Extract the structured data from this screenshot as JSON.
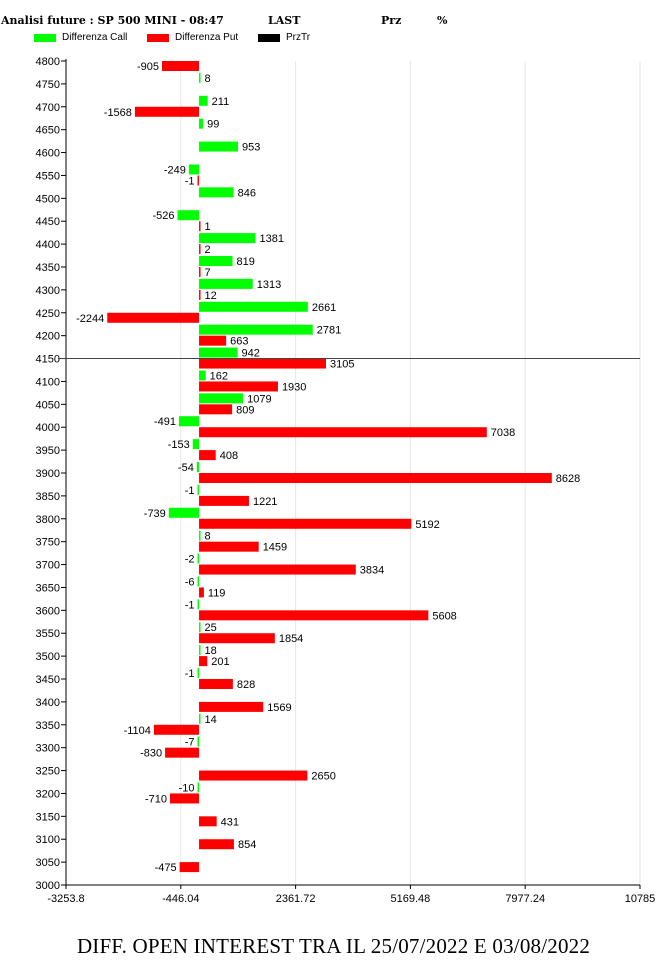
{
  "header": {
    "title": "Analisi future : SP 500 MINI - 08:47",
    "last": "LAST",
    "prz": "Prz",
    "pct": "%"
  },
  "legend": [
    {
      "label": "Differenza Call",
      "color": "#00ff00"
    },
    {
      "label": "Differenza Put",
      "color": "#ff0000"
    },
    {
      "label": "PrzTr",
      "color": "#000000"
    }
  ],
  "footer": "DIFF. OPEN INTEREST TRA IL 25/07/2022 E 03/08/2022",
  "chart_data": {
    "type": "bar",
    "orientation": "horizontal",
    "categories": [
      4800,
      4750,
      4700,
      4650,
      4600,
      4550,
      4500,
      4450,
      4400,
      4350,
      4300,
      4250,
      4200,
      4150,
      4100,
      4050,
      4000,
      3950,
      3900,
      3850,
      3800,
      3750,
      3700,
      3650,
      3600,
      3550,
      3500,
      3450,
      3400,
      3350,
      3300,
      3250,
      3200,
      3150,
      3100,
      3050
    ],
    "series": [
      {
        "name": "Differenza Call",
        "color": "#00ff00",
        "values": [
          null,
          8,
          211,
          99,
          953,
          -249,
          846,
          -526,
          1381,
          819,
          1313,
          2661,
          2781,
          942,
          162,
          1079,
          -491,
          -153,
          -54,
          -1,
          -739,
          8,
          -2,
          -6,
          -1,
          25,
          18,
          -1,
          null,
          14,
          -7,
          null,
          -10,
          null,
          null,
          null
        ]
      },
      {
        "name": "Differenza Put",
        "color": "#ff0000",
        "values": [
          -905,
          null,
          -1568,
          null,
          null,
          -1,
          null,
          1,
          2,
          7,
          12,
          -2244,
          663,
          3105,
          1930,
          809,
          7038,
          408,
          8628,
          1221,
          5192,
          1459,
          3834,
          119,
          5608,
          1854,
          201,
          828,
          1569,
          -1104,
          -830,
          2650,
          -710,
          431,
          854,
          -475
        ]
      }
    ],
    "price_line": 4150,
    "y_range": [
      3000,
      4800
    ],
    "y_ticks": [
      4800,
      4750,
      4700,
      4650,
      4600,
      4550,
      4500,
      4450,
      4400,
      4350,
      4300,
      4250,
      4200,
      4150,
      4100,
      4050,
      4000,
      3950,
      3900,
      3850,
      3800,
      3750,
      3700,
      3650,
      3600,
      3550,
      3500,
      3450,
      3400,
      3350,
      3300,
      3250,
      3200,
      3150,
      3100,
      3050,
      3000
    ],
    "x_range": [
      -3253.8,
      10785
    ],
    "x_ticks": [
      "-3253.8",
      "-446.04",
      "2361.72",
      "5169.48",
      "7977.24",
      "10785"
    ],
    "grid": "vertical"
  }
}
